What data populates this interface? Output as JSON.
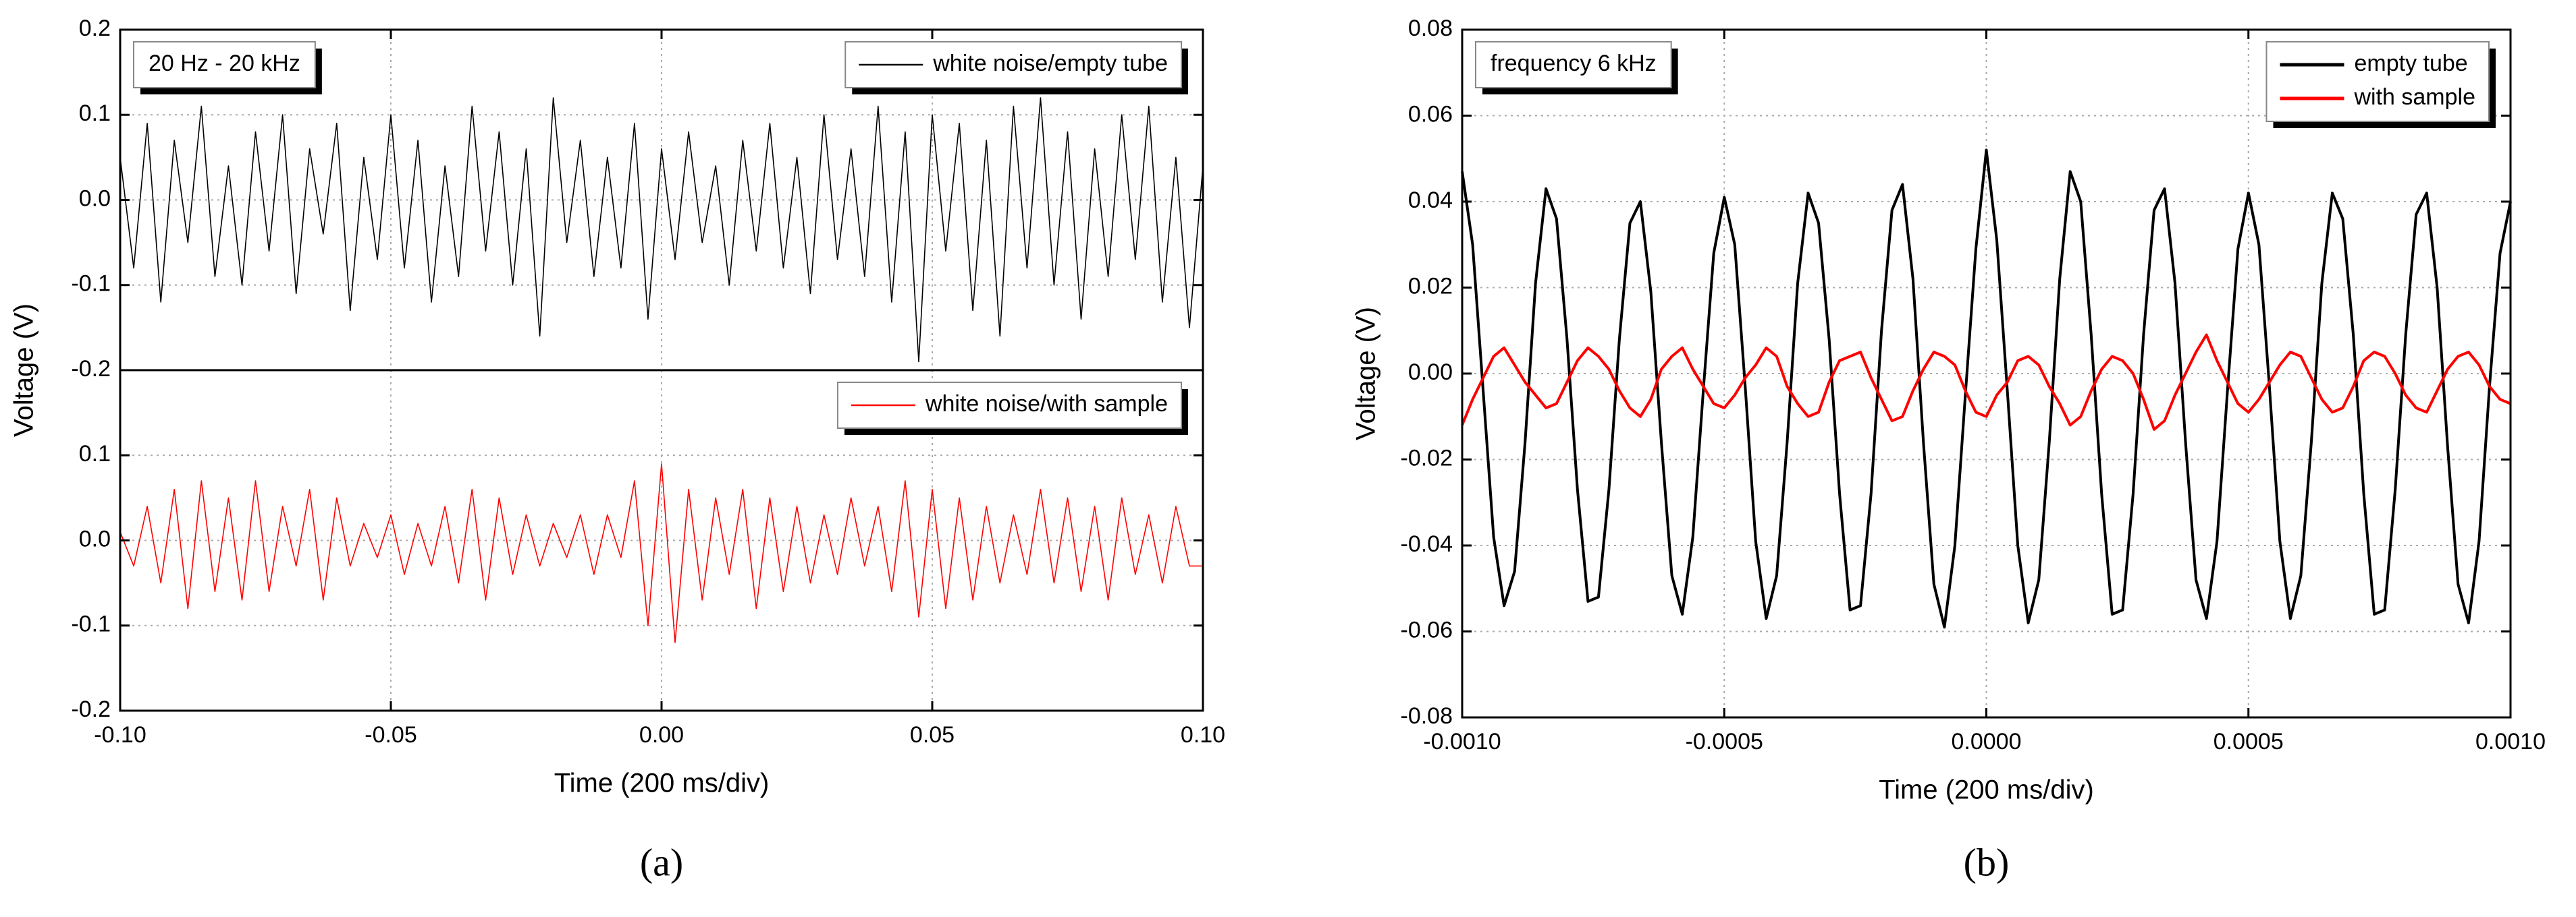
{
  "chart_data": [
    {
      "type": "line",
      "caption": "(a)",
      "xlabel": "Time (200 ms/div)",
      "ylabel": "Voltage (V)",
      "xlim": [
        -0.1,
        0.1
      ],
      "xticks": [
        {
          "value": -0.1,
          "label": "-0.10"
        },
        -0.05,
        {
          "value": 0,
          "label": "0.00"
        },
        0.05,
        {
          "value": 0.1,
          "label": "0.10"
        }
      ],
      "grid": true,
      "legend": "upper right",
      "x": [
        -0.1,
        -0.0975,
        -0.095,
        -0.0925,
        -0.09,
        -0.0875,
        -0.085,
        -0.0825,
        -0.08,
        -0.0775,
        -0.075,
        -0.0725,
        -0.07,
        -0.0675,
        -0.065,
        -0.0625,
        -0.06,
        -0.0575,
        -0.055,
        -0.0525,
        -0.05,
        -0.0475,
        -0.045,
        -0.0425,
        -0.04,
        -0.0375,
        -0.035,
        -0.0325,
        -0.03,
        -0.0275,
        -0.025,
        -0.0225,
        -0.02,
        -0.0175,
        -0.015,
        -0.0125,
        -0.01,
        -0.0075,
        -0.005,
        -0.0025,
        0,
        0.0025,
        0.005,
        0.0075,
        0.01,
        0.0125,
        0.015,
        0.0175,
        0.02,
        0.0225,
        0.025,
        0.0275,
        0.03,
        0.0325,
        0.035,
        0.0375,
        0.04,
        0.0425,
        0.045,
        0.0475,
        0.05,
        0.0525,
        0.055,
        0.0575,
        0.06,
        0.0625,
        0.065,
        0.0675,
        0.07,
        0.0725,
        0.075,
        0.0775,
        0.08,
        0.0825,
        0.085,
        0.0875,
        0.09,
        0.0925,
        0.095,
        0.0975,
        0.1
      ],
      "subplots": [
        {
          "annotation": "20 Hz - 20 kHz",
          "ylim": [
            -0.2,
            0.2
          ],
          "yticks": [
            0.2,
            0.1,
            {
              "value": 0,
              "label": "0.0"
            },
            -0.1,
            -0.2
          ],
          "series": [
            {
              "name": "white noise/empty tube",
              "color": "#000000",
              "values": [
                0.05,
                -0.08,
                0.09,
                -0.12,
                0.07,
                -0.05,
                0.11,
                -0.09,
                0.04,
                -0.1,
                0.08,
                -0.06,
                0.1,
                -0.11,
                0.06,
                -0.04,
                0.09,
                -0.13,
                0.05,
                -0.07,
                0.1,
                -0.08,
                0.07,
                -0.12,
                0.04,
                -0.09,
                0.11,
                -0.06,
                0.08,
                -0.1,
                0.06,
                -0.16,
                0.12,
                -0.05,
                0.07,
                -0.09,
                0.05,
                -0.08,
                0.09,
                -0.14,
                0.06,
                -0.07,
                0.08,
                -0.05,
                0.04,
                -0.1,
                0.07,
                -0.06,
                0.09,
                -0.08,
                0.05,
                -0.11,
                0.1,
                -0.07,
                0.06,
                -0.09,
                0.11,
                -0.12,
                0.08,
                -0.19,
                0.1,
                -0.06,
                0.09,
                -0.13,
                0.07,
                -0.16,
                0.11,
                -0.08,
                0.12,
                -0.1,
                0.08,
                -0.14,
                0.06,
                -0.09,
                0.1,
                -0.07,
                0.11,
                -0.12,
                0.05,
                -0.15,
                0.04
              ]
            }
          ]
        },
        {
          "ylim": [
            -0.2,
            0.2
          ],
          "yticks": [
            0.1,
            {
              "value": 0,
              "label": "0.0"
            },
            -0.1,
            -0.2
          ],
          "series": [
            {
              "name": "white noise/with sample",
              "color": "#ff0000",
              "values": [
                0.01,
                -0.03,
                0.04,
                -0.05,
                0.06,
                -0.08,
                0.07,
                -0.06,
                0.05,
                -0.07,
                0.07,
                -0.06,
                0.04,
                -0.03,
                0.06,
                -0.07,
                0.05,
                -0.03,
                0.02,
                -0.02,
                0.03,
                -0.04,
                0.02,
                -0.03,
                0.04,
                -0.05,
                0.06,
                -0.07,
                0.05,
                -0.04,
                0.03,
                -0.03,
                0.02,
                -0.02,
                0.03,
                -0.04,
                0.03,
                -0.02,
                0.07,
                -0.1,
                0.09,
                -0.12,
                0.06,
                -0.07,
                0.05,
                -0.04,
                0.06,
                -0.08,
                0.05,
                -0.06,
                0.04,
                -0.05,
                0.03,
                -0.04,
                0.05,
                -0.03,
                0.04,
                -0.06,
                0.07,
                -0.09,
                0.06,
                -0.08,
                0.05,
                -0.07,
                0.04,
                -0.05,
                0.03,
                -0.04,
                0.06,
                -0.05,
                0.05,
                -0.06,
                0.04,
                -0.07,
                0.05,
                -0.04,
                0.03,
                -0.05,
                0.04,
                -0.03,
                -0.03
              ]
            }
          ]
        }
      ]
    },
    {
      "type": "line",
      "caption": "(b)",
      "xlabel": "Time (200 ms/div)",
      "ylabel": "Voltage (V)",
      "xlim": [
        -0.001,
        0.001
      ],
      "xticks": [
        {
          "value": -0.001,
          "label": "-0.0010"
        },
        {
          "value": -0.0005,
          "label": "-0.0005"
        },
        {
          "value": 0,
          "label": "0.0000"
        },
        {
          "value": 0.0005,
          "label": "0.0005"
        },
        {
          "value": 0.001,
          "label": "0.0010"
        }
      ],
      "grid": true,
      "legend": "upper right",
      "x": [
        -0.001,
        -0.00098,
        -0.00096,
        -0.00094,
        -0.00092,
        -0.0009,
        -0.00088,
        -0.00086,
        -0.00084,
        -0.00082,
        -0.0008,
        -0.00078,
        -0.00076,
        -0.00074,
        -0.00072,
        -0.0007,
        -0.00068,
        -0.00066,
        -0.00064,
        -0.00062,
        -0.0006,
        -0.00058,
        -0.00056,
        -0.00054,
        -0.00052,
        -0.0005,
        -0.00048,
        -0.00046,
        -0.00044,
        -0.00042,
        -0.0004,
        -0.00038,
        -0.00036,
        -0.00034,
        -0.00032,
        -0.0003,
        -0.00028,
        -0.00026,
        -0.00024,
        -0.00022,
        -0.0002,
        -0.00018,
        -0.00016,
        -0.00014,
        -0.00012,
        -0.0001,
        -8e-05,
        -6e-05,
        -4e-05,
        -2e-05,
        0,
        2e-05,
        4e-05,
        6e-05,
        8e-05,
        0.0001,
        0.00012,
        0.00014,
        0.00016,
        0.00018,
        0.0002,
        0.00022,
        0.00024,
        0.00026,
        0.00028,
        0.0003,
        0.00032,
        0.00034,
        0.00036,
        0.00038,
        0.0004,
        0.00042,
        0.00044,
        0.00046,
        0.00048,
        0.0005,
        0.00052,
        0.00054,
        0.00056,
        0.00058,
        0.0006,
        0.00062,
        0.00064,
        0.00066,
        0.00068,
        0.0007,
        0.00072,
        0.00074,
        0.00076,
        0.00078,
        0.0008,
        0.00082,
        0.00084,
        0.00086,
        0.00088,
        0.0009,
        0.00092,
        0.00094,
        0.00096,
        0.00098,
        0.001
      ],
      "subplots": [
        {
          "annotation": "frequency 6 kHz",
          "ylim": [
            -0.08,
            0.08
          ],
          "yticks": [
            0.08,
            0.06,
            0.04,
            0.02,
            {
              "value": 0,
              "label": "0.00"
            },
            -0.02,
            -0.04,
            -0.06,
            -0.08
          ],
          "series": [
            {
              "name": "empty tube",
              "color": "#000000",
              "values": [
                0.047,
                0.03,
                -0.004,
                -0.038,
                -0.054,
                -0.046,
                -0.016,
                0.021,
                0.043,
                0.036,
                0.008,
                -0.027,
                -0.053,
                -0.052,
                -0.027,
                0.008,
                0.035,
                0.04,
                0.019,
                -0.016,
                -0.047,
                -0.056,
                -0.038,
                -0.004,
                0.028,
                0.041,
                0.03,
                -0.003,
                -0.039,
                -0.057,
                -0.047,
                -0.016,
                0.021,
                0.042,
                0.035,
                0.008,
                -0.028,
                -0.055,
                -0.054,
                -0.028,
                0.01,
                0.038,
                0.044,
                0.022,
                -0.016,
                -0.049,
                -0.059,
                -0.04,
                -0.005,
                0.029,
                0.052,
                0.031,
                -0.004,
                -0.04,
                -0.058,
                -0.048,
                -0.016,
                0.022,
                0.047,
                0.04,
                0.009,
                -0.028,
                -0.056,
                -0.055,
                -0.028,
                0.009,
                0.038,
                0.043,
                0.021,
                -0.016,
                -0.048,
                -0.057,
                -0.039,
                -0.004,
                0.029,
                0.042,
                0.03,
                -0.003,
                -0.039,
                -0.057,
                -0.047,
                -0.016,
                0.021,
                0.042,
                0.036,
                0.009,
                -0.028,
                -0.056,
                -0.055,
                -0.027,
                0.009,
                0.037,
                0.042,
                0.02,
                -0.017,
                -0.049,
                -0.058,
                -0.039,
                -0.003,
                0.028,
                0.04
              ]
            },
            {
              "name": "with sample",
              "color": "#ff0000",
              "values": [
                -0.012,
                -0.006,
                -0.001,
                0.004,
                0.006,
                0.002,
                -0.002,
                -0.005,
                -0.008,
                -0.007,
                -0.002,
                0.003,
                0.006,
                0.004,
                0.001,
                -0.004,
                -0.008,
                -0.01,
                -0.006,
                0.001,
                0.004,
                0.006,
                0.001,
                -0.003,
                -0.007,
                -0.008,
                -0.005,
                -0.001,
                0.002,
                0.006,
                0.004,
                -0.003,
                -0.007,
                -0.01,
                -0.009,
                -0.002,
                0.003,
                0.004,
                0.005,
                -0.001,
                -0.006,
                -0.011,
                -0.01,
                -0.004,
                0.001,
                0.005,
                0.004,
                0.002,
                -0.004,
                -0.009,
                -0.01,
                -0.005,
                -0.002,
                0.003,
                0.004,
                0.002,
                -0.003,
                -0.007,
                -0.012,
                -0.01,
                -0.004,
                0.001,
                0.004,
                0.003,
                0,
                -0.006,
                -0.013,
                -0.011,
                -0.005,
                0,
                0.005,
                0.009,
                0.003,
                -0.002,
                -0.007,
                -0.009,
                -0.006,
                -0.002,
                0.002,
                0.005,
                0.004,
                -0.001,
                -0.006,
                -0.009,
                -0.008,
                -0.003,
                0.003,
                0.005,
                0.004,
                0,
                -0.005,
                -0.008,
                -0.009,
                -0.004,
                0.001,
                0.004,
                0.005,
                0.002,
                -0.003,
                -0.006,
                -0.007
              ]
            }
          ]
        }
      ]
    }
  ]
}
